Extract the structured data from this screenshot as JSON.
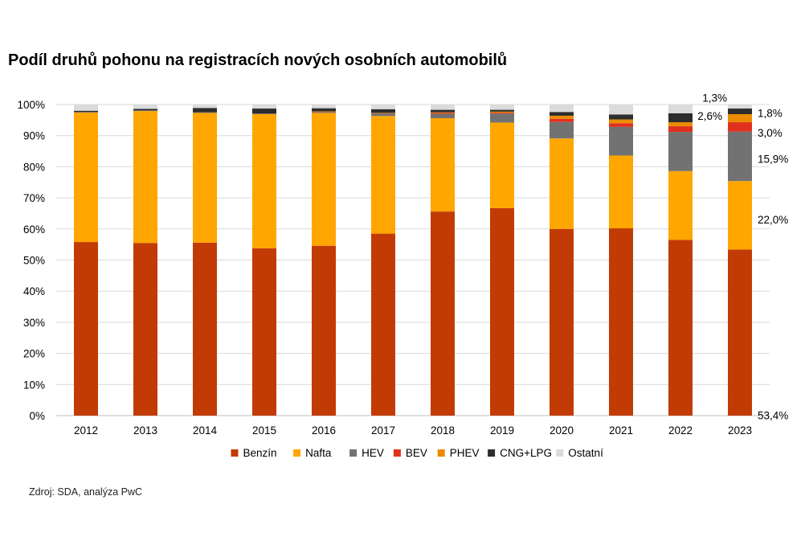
{
  "title": "Podíl druhů pohonu na registracích nových osobních automobilů",
  "source": "Zdroj: SDA, analýza PwC",
  "chart_data": {
    "type": "bar",
    "stacked": true,
    "categories": [
      "2012",
      "2013",
      "2014",
      "2015",
      "2016",
      "2017",
      "2018",
      "2019",
      "2020",
      "2021",
      "2022",
      "2023"
    ],
    "ylim": [
      0,
      100
    ],
    "yticks": [
      "0%",
      "10%",
      "20%",
      "30%",
      "40%",
      "50%",
      "60%",
      "70%",
      "80%",
      "90%",
      "100%"
    ],
    "grid": true,
    "legend_position": "bottom",
    "series": [
      {
        "name": "Benzín",
        "color": "#c23b05",
        "values": [
          55.8,
          55.5,
          55.6,
          53.8,
          54.6,
          58.5,
          65.6,
          66.7,
          60.0,
          60.2,
          56.5,
          53.4
        ]
      },
      {
        "name": "Nafta",
        "color": "#ffa600",
        "values": [
          41.6,
          42.4,
          41.7,
          43.1,
          42.7,
          37.8,
          30.0,
          27.5,
          29.1,
          23.4,
          22.1,
          22.0
        ]
      },
      {
        "name": "HEV",
        "color": "#727272",
        "values": [
          0.2,
          0.2,
          0.2,
          0.2,
          0.3,
          0.8,
          1.4,
          2.9,
          5.3,
          9.2,
          12.6,
          15.9
        ]
      },
      {
        "name": "BEV",
        "color": "#e0301e",
        "values": [
          0.0,
          0.0,
          0.0,
          0.0,
          0.1,
          0.1,
          0.3,
          0.3,
          1.0,
          1.2,
          1.8,
          3.0
        ]
      },
      {
        "name": "PHEV",
        "color": "#eb8c00",
        "values": [
          0.0,
          0.0,
          0.0,
          0.0,
          0.1,
          0.1,
          0.2,
          0.3,
          1.0,
          1.2,
          1.3,
          2.6
        ]
      },
      {
        "name": "CNG+LPG",
        "color": "#2d2d2d",
        "values": [
          0.4,
          0.5,
          1.4,
          1.6,
          1.0,
          1.2,
          0.8,
          0.6,
          1.2,
          1.6,
          2.9,
          1.8
        ]
      },
      {
        "name": "Ostatní",
        "color": "#dbdbdb",
        "values": [
          2.0,
          1.4,
          1.1,
          1.3,
          1.2,
          1.5,
          1.7,
          1.7,
          2.4,
          3.2,
          2.8,
          1.3
        ]
      }
    ],
    "annotations": [
      {
        "series": "Ostatní",
        "category": "2023",
        "text": "1,3%"
      },
      {
        "series": "CNG+LPG",
        "category": "2023",
        "text": "1,8%"
      },
      {
        "series": "PHEV",
        "category": "2023",
        "text": "2,6%"
      },
      {
        "series": "BEV",
        "category": "2023",
        "text": "3,0%"
      },
      {
        "series": "HEV",
        "category": "2023",
        "text": "15,9%"
      },
      {
        "series": "Nafta",
        "category": "2023",
        "text": "22,0%"
      },
      {
        "series": "Benzín",
        "category": "2023",
        "text": "53,4%"
      }
    ]
  }
}
